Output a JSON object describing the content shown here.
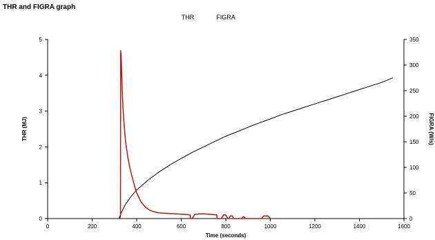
{
  "chart_data": {
    "type": "line",
    "title": "THR and FIGRA graph",
    "legend": {
      "placement": "top-center",
      "entries": [
        "THR",
        "FIGRA"
      ]
    },
    "xlabel": "Time (seconds)",
    "ylabel_left": "THR (MJ)",
    "ylabel_right": "FIGRA (W/s)",
    "xlim": [
      0,
      1600
    ],
    "ylim_left": [
      0,
      5
    ],
    "ylim_right": [
      0,
      350
    ],
    "xticks": [
      0,
      200,
      400,
      600,
      800,
      1000,
      1200,
      1400,
      1600
    ],
    "yticks_left": [
      0,
      1,
      2,
      3,
      4,
      5
    ],
    "yticks_right": [
      0,
      50,
      100,
      150,
      200,
      250,
      300,
      350
    ],
    "grid": false,
    "colors": {
      "thr": "#000000",
      "figra": "#b01818"
    },
    "series": [
      {
        "name": "THR",
        "axis": "left",
        "x": [
          320,
          330,
          340,
          350,
          375,
          400,
          450,
          500,
          550,
          600,
          650,
          700,
          750,
          800,
          850,
          900,
          950,
          1000,
          1050,
          1100,
          1150,
          1200,
          1250,
          1300,
          1350,
          1400,
          1450,
          1500,
          1550
        ],
        "y": [
          0,
          0.15,
          0.28,
          0.4,
          0.62,
          0.8,
          1.07,
          1.3,
          1.5,
          1.68,
          1.85,
          2.0,
          2.15,
          2.3,
          2.42,
          2.55,
          2.67,
          2.78,
          2.9,
          3.0,
          3.1,
          3.2,
          3.3,
          3.4,
          3.5,
          3.6,
          3.7,
          3.8,
          3.93
        ]
      },
      {
        "name": "FIGRA",
        "axis": "right",
        "x": [
          320,
          325,
          327,
          328,
          330,
          332,
          335,
          340,
          345,
          350,
          360,
          370,
          380,
          390,
          400,
          420,
          440,
          460,
          480,
          500,
          540,
          580,
          620,
          640,
          641,
          650,
          660,
          680,
          700,
          740,
          760,
          761,
          780,
          790,
          800,
          810,
          815,
          820,
          830,
          835,
          870,
          880,
          890,
          960,
          970,
          980,
          990,
          1000
        ],
        "y": [
          0,
          0,
          8,
          328,
          320,
          290,
          250,
          205,
          175,
          150,
          120,
          98,
          80,
          64,
          50,
          32,
          22,
          16,
          13,
          11,
          10,
          9,
          8,
          7,
          0,
          0,
          8,
          9,
          9,
          8,
          7,
          0,
          0,
          7,
          7,
          0,
          0,
          5,
          5,
          0,
          0,
          4,
          0,
          0,
          5,
          5,
          5,
          0
        ]
      }
    ]
  }
}
